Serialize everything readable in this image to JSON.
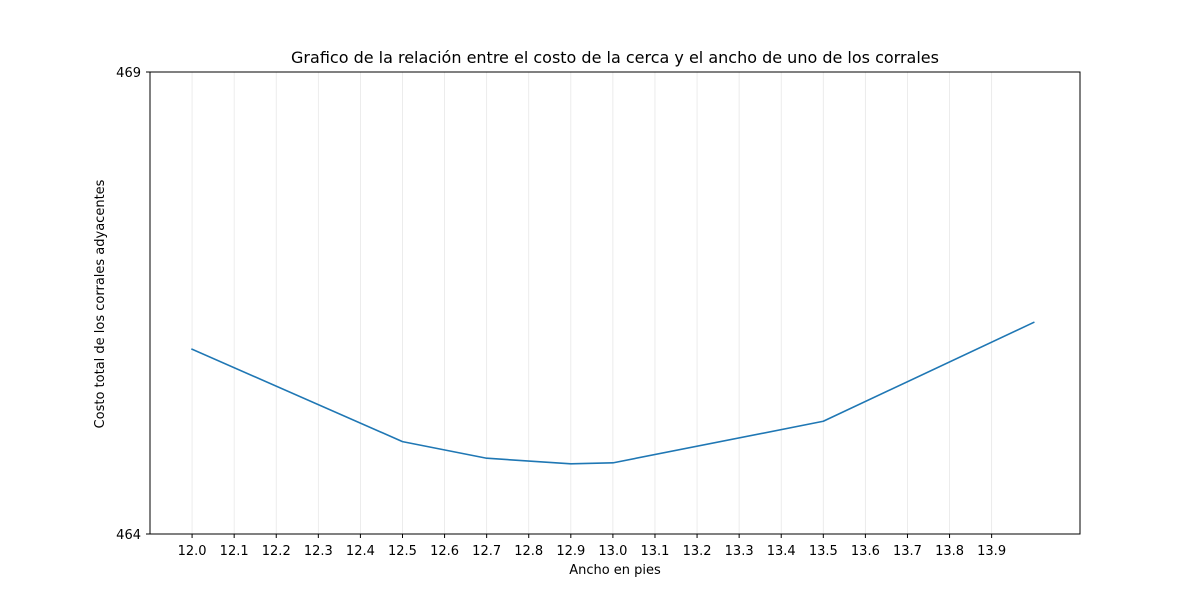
{
  "chart_data": {
    "type": "line",
    "title": "Grafico de la relación entre el costo de la cerca y el ancho de uno de los corrales",
    "xlabel": "Ancho en pies",
    "ylabel": "Costo total de los corrales adyacentes",
    "xlim": [
      11.9,
      14.11
    ],
    "ylim": [
      464,
      469
    ],
    "x_ticks": [
      "12.0",
      "12.1",
      "12.2",
      "12.3",
      "12.4",
      "12.5",
      "12.6",
      "12.7",
      "12.8",
      "12.9",
      "13.0",
      "13.1",
      "13.2",
      "13.3",
      "13.4",
      "13.5",
      "13.6",
      "13.7",
      "13.8",
      "13.9"
    ],
    "y_ticks": [
      "464",
      "469"
    ],
    "grid": "vertical",
    "legend": "none",
    "line_color": "#1f77b4",
    "series": [
      {
        "x": [
          12.0,
          12.5,
          12.7,
          12.9,
          13.0,
          13.5,
          14.0
        ],
        "y": [
          466.0,
          465.0,
          464.82,
          464.76,
          464.77,
          465.22,
          466.29
        ]
      }
    ]
  }
}
